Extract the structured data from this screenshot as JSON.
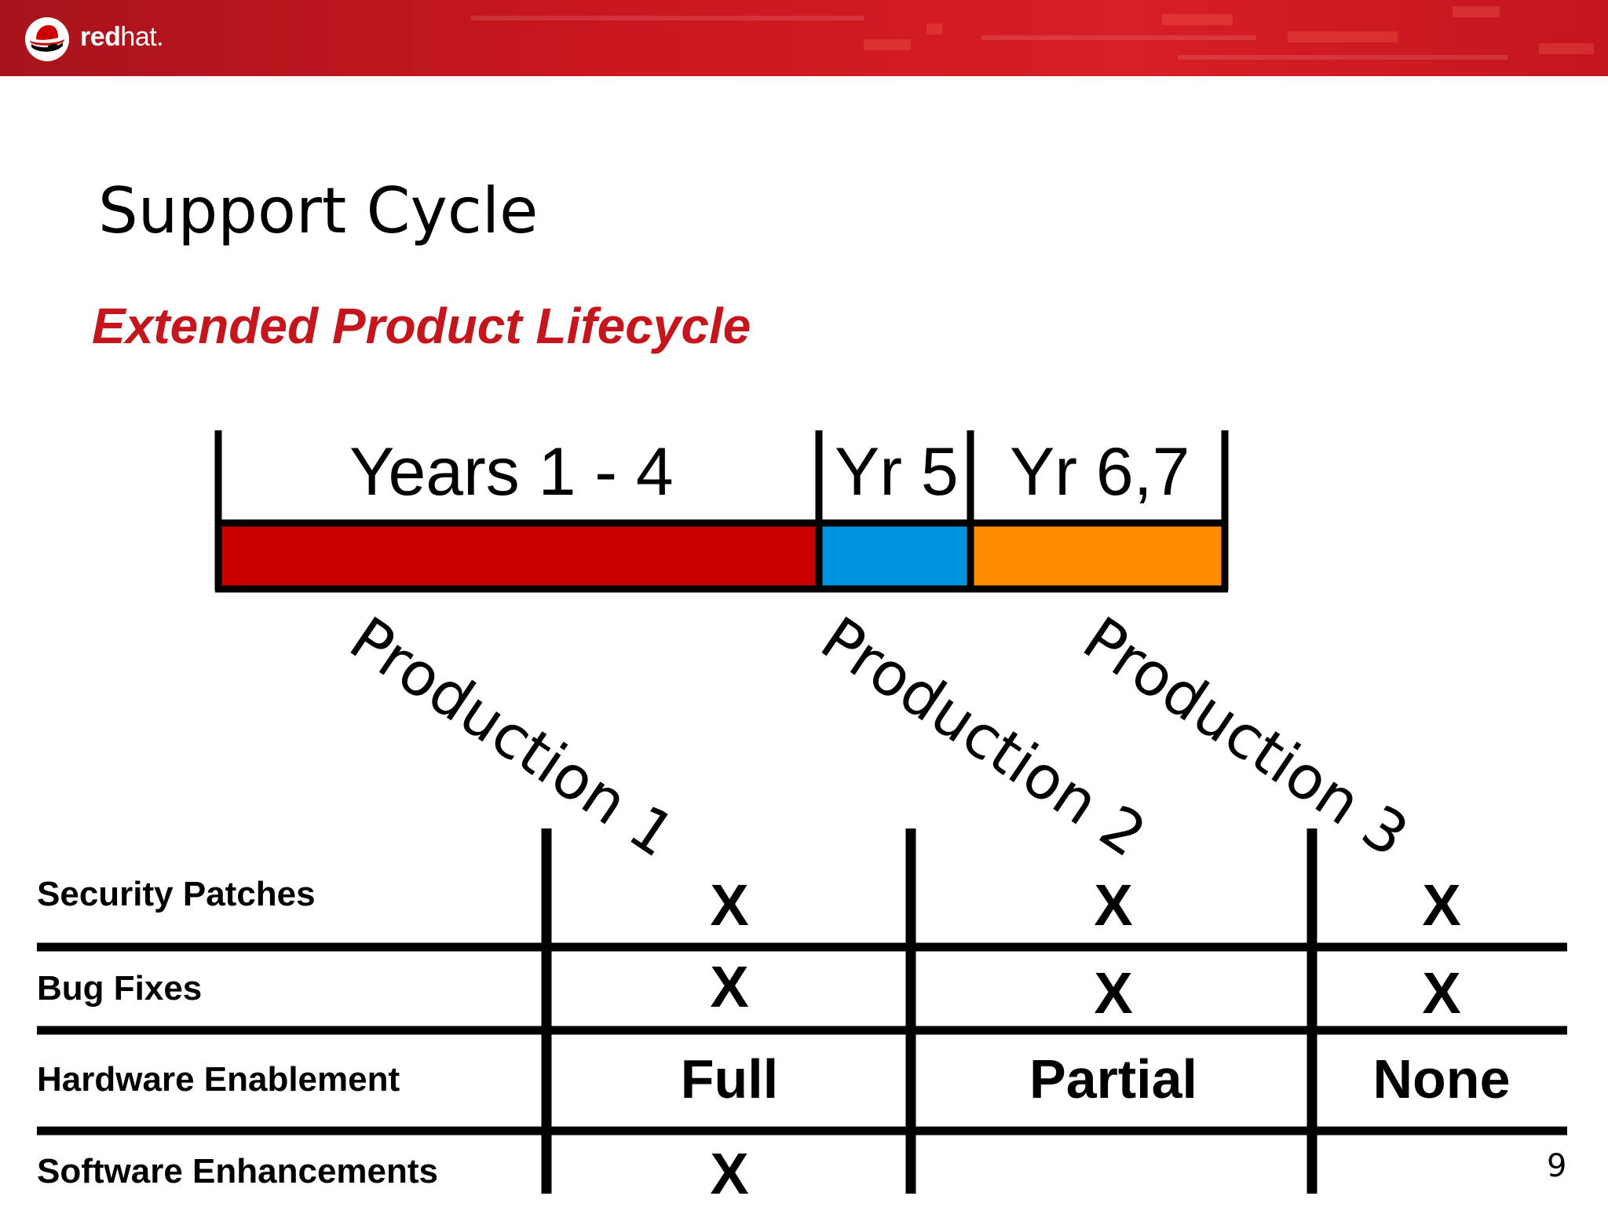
{
  "header": {
    "logo_text_bold": "red",
    "logo_text_light": "hat."
  },
  "slide": {
    "title": "Support Cycle",
    "subtitle": "Extended Product Lifecycle",
    "page_number": "9"
  },
  "timeline": {
    "segments": [
      {
        "label": "Years 1 - 4",
        "phase": "Production 1",
        "color": "#c80000"
      },
      {
        "label": "Yr 5",
        "phase": "Production 2",
        "color": "#0094de"
      },
      {
        "label": "Yr 6,7",
        "phase": "Production 3",
        "color": "#ff8c00"
      }
    ]
  },
  "support_table": {
    "rows": [
      {
        "label": "Security Patches",
        "values": [
          "X",
          "X",
          "X"
        ]
      },
      {
        "label": "Bug Fixes",
        "values": [
          "X",
          "X",
          "X"
        ]
      },
      {
        "label": "Hardware Enablement",
        "values": [
          "Full",
          "Partial",
          "None"
        ]
      },
      {
        "label": "Software Enhancements",
        "values": [
          "X",
          "",
          ""
        ]
      }
    ]
  }
}
